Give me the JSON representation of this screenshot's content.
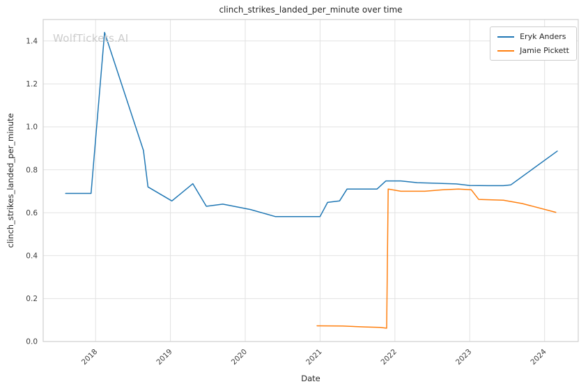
{
  "figure": {
    "watermark": "WolfTickets.AI"
  },
  "chart_data": {
    "type": "line",
    "title": "clinch_strikes_landed_per_minute over time",
    "xlabel": "Date",
    "ylabel": "clinch_strikes_landed_per_minute",
    "xlim": [
      2017.3,
      2024.45
    ],
    "ylim": [
      0.0,
      1.5
    ],
    "xticks": [
      2018,
      2019,
      2020,
      2021,
      2022,
      2023,
      2024
    ],
    "yticks": [
      0.0,
      0.2,
      0.4,
      0.6,
      0.8,
      1.0,
      1.2,
      1.4
    ],
    "grid": true,
    "grid_color": "#e2e2e2",
    "spine_color": "#cfcfcf",
    "legend_position": "upper right",
    "series": [
      {
        "name": "Eryk Anders",
        "color": "#1f77b4",
        "points": [
          [
            2017.6,
            0.69
          ],
          [
            2017.94,
            0.69
          ],
          [
            2018.12,
            1.44
          ],
          [
            2018.64,
            0.89
          ],
          [
            2018.7,
            0.72
          ],
          [
            2019.02,
            0.655
          ],
          [
            2019.3,
            0.735
          ],
          [
            2019.48,
            0.63
          ],
          [
            2019.7,
            0.64
          ],
          [
            2020.07,
            0.615
          ],
          [
            2020.4,
            0.582
          ],
          [
            2020.7,
            0.582
          ],
          [
            2021.0,
            0.582
          ],
          [
            2021.1,
            0.648
          ],
          [
            2021.26,
            0.655
          ],
          [
            2021.36,
            0.71
          ],
          [
            2021.6,
            0.71
          ],
          [
            2021.76,
            0.71
          ],
          [
            2021.88,
            0.748
          ],
          [
            2022.08,
            0.748
          ],
          [
            2022.3,
            0.74
          ],
          [
            2022.58,
            0.737
          ],
          [
            2022.82,
            0.734
          ],
          [
            2023.0,
            0.727
          ],
          [
            2023.25,
            0.726
          ],
          [
            2023.45,
            0.726
          ],
          [
            2023.55,
            0.73
          ],
          [
            2024.17,
            0.887
          ]
        ]
      },
      {
        "name": "Jamie Pickett",
        "color": "#ff7f0e",
        "points": [
          [
            2020.96,
            0.073
          ],
          [
            2021.3,
            0.072
          ],
          [
            2021.6,
            0.068
          ],
          [
            2021.8,
            0.066
          ],
          [
            2021.89,
            0.062
          ],
          [
            2021.91,
            0.71
          ],
          [
            2022.08,
            0.7
          ],
          [
            2022.4,
            0.7
          ],
          [
            2022.65,
            0.707
          ],
          [
            2022.85,
            0.71
          ],
          [
            2023.02,
            0.707
          ],
          [
            2023.12,
            0.662
          ],
          [
            2023.45,
            0.658
          ],
          [
            2023.7,
            0.643
          ],
          [
            2024.15,
            0.602
          ]
        ]
      }
    ]
  }
}
